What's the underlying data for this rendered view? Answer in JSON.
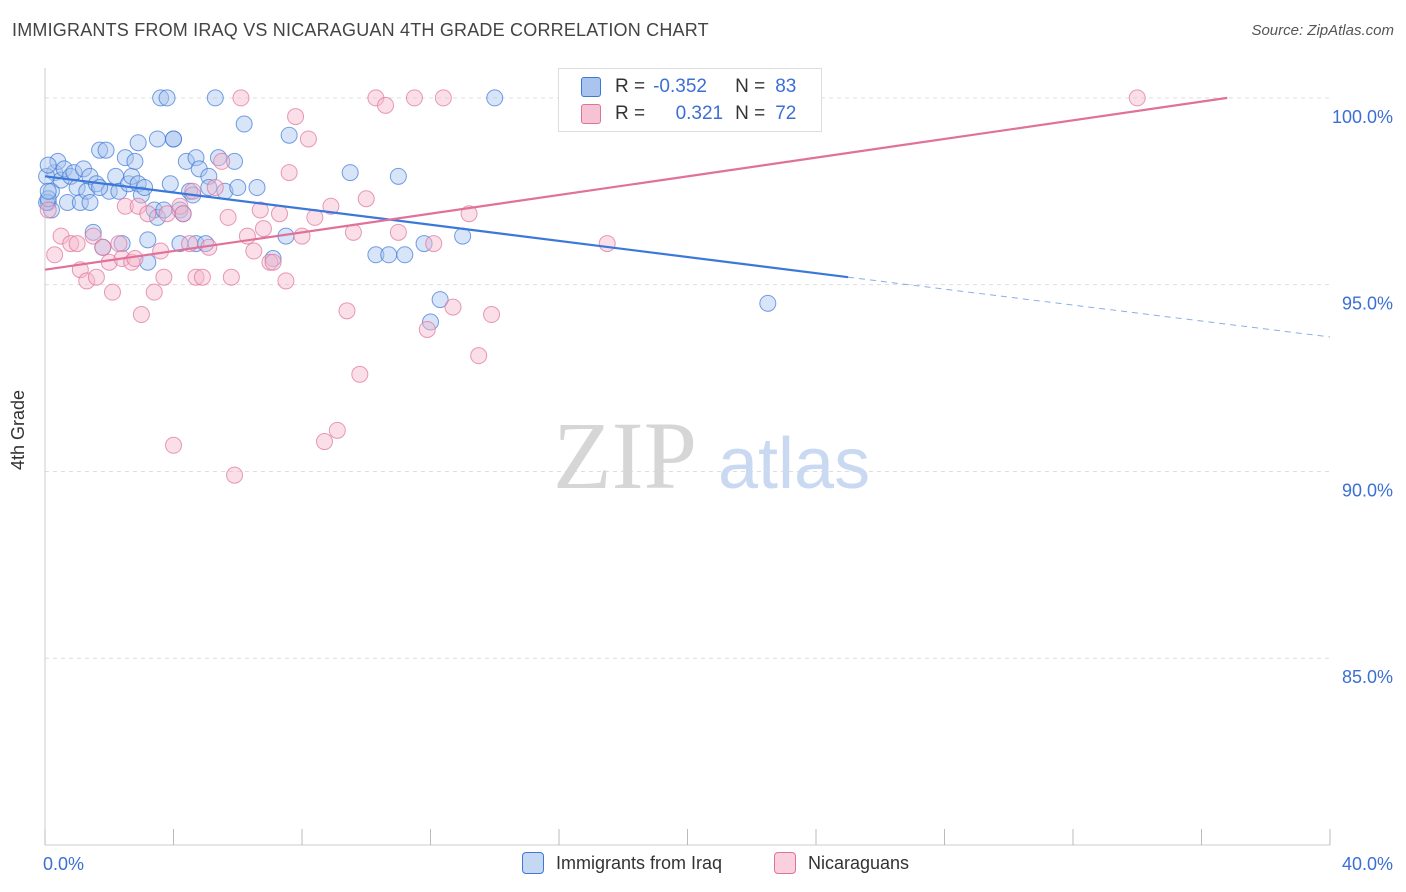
{
  "title": "IMMIGRANTS FROM IRAQ VS NICARAGUAN 4TH GRADE CORRELATION CHART",
  "source": "Source: ZipAtlas.com",
  "watermark": {
    "zip": "ZIP",
    "atlas": "atlas"
  },
  "stats": {
    "row1": {
      "r_label": "R =",
      "r_value": "-0.352",
      "n_label": "N =",
      "n_value": "83"
    },
    "row2": {
      "r_label": "R =",
      "r_value": "0.321",
      "n_label": "N =",
      "n_value": "72"
    }
  },
  "legend": {
    "series1": "Immigrants from Iraq",
    "series2": "Nicaraguans"
  },
  "colors": {
    "blue": "#3b78d8",
    "blue_fill": "#a9c4ee",
    "pink": "#e0719a",
    "pink_fill": "#f5b8cc",
    "grid": "#dddddd",
    "axis_text": "#3b6fd4"
  },
  "chart_data": {
    "type": "scatter",
    "xlabel": "",
    "ylabel": "4th Grade",
    "xlim": [
      0,
      40
    ],
    "ylim": [
      80,
      100.8
    ],
    "x_tick_labels": [
      "0.0%",
      "40.0%"
    ],
    "y_ticks": [
      85,
      90,
      95,
      100
    ],
    "y_tick_labels": [
      "85.0%",
      "90.0%",
      "95.0%",
      "100.0%"
    ],
    "series": [
      {
        "name": "Immigrants from Iraq",
        "color": "#3b78d8",
        "points": [
          [
            0.1,
            97.2
          ],
          [
            0.2,
            97.5
          ],
          [
            0.2,
            97.0
          ],
          [
            0.3,
            98.0
          ],
          [
            0.4,
            98.3
          ],
          [
            0.5,
            97.8
          ],
          [
            0.6,
            98.1
          ],
          [
            0.7,
            97.2
          ],
          [
            0.8,
            97.9
          ],
          [
            0.9,
            98.0
          ],
          [
            1.0,
            97.6
          ],
          [
            1.1,
            97.2
          ],
          [
            1.2,
            98.1
          ],
          [
            1.3,
            97.5
          ],
          [
            1.4,
            97.9
          ],
          [
            1.4,
            97.2
          ],
          [
            1.5,
            96.4
          ],
          [
            1.6,
            97.7
          ],
          [
            1.7,
            98.6
          ],
          [
            1.8,
            96.0
          ],
          [
            1.9,
            98.6
          ],
          [
            2.0,
            97.5
          ],
          [
            2.2,
            97.9
          ],
          [
            2.3,
            97.5
          ],
          [
            2.4,
            96.1
          ],
          [
            2.5,
            98.4
          ],
          [
            2.6,
            97.7
          ],
          [
            2.7,
            97.9
          ],
          [
            2.8,
            98.3
          ],
          [
            2.9,
            98.8
          ],
          [
            2.9,
            97.7
          ],
          [
            3.0,
            97.4
          ],
          [
            3.1,
            97.6
          ],
          [
            3.2,
            96.2
          ],
          [
            3.2,
            95.6
          ],
          [
            3.4,
            97.0
          ],
          [
            3.5,
            96.8
          ],
          [
            3.5,
            98.9
          ],
          [
            3.6,
            100.0
          ],
          [
            3.7,
            97.0
          ],
          [
            3.8,
            100.0
          ],
          [
            3.9,
            97.7
          ],
          [
            4.0,
            98.9
          ],
          [
            4.0,
            98.9
          ],
          [
            4.2,
            96.1
          ],
          [
            4.2,
            97.0
          ],
          [
            4.3,
            96.9
          ],
          [
            4.4,
            98.3
          ],
          [
            4.5,
            97.5
          ],
          [
            4.6,
            97.4
          ],
          [
            4.7,
            98.4
          ],
          [
            4.7,
            96.1
          ],
          [
            4.8,
            98.1
          ],
          [
            5.0,
            96.1
          ],
          [
            5.1,
            97.9
          ],
          [
            5.1,
            97.6
          ],
          [
            5.3,
            100.0
          ],
          [
            5.4,
            98.4
          ],
          [
            5.6,
            97.5
          ],
          [
            5.9,
            98.3
          ],
          [
            6.0,
            97.6
          ],
          [
            6.2,
            99.3
          ],
          [
            6.6,
            97.6
          ],
          [
            7.1,
            95.7
          ],
          [
            7.5,
            96.3
          ],
          [
            7.6,
            99.0
          ],
          [
            9.5,
            98.0
          ],
          [
            10.3,
            95.8
          ],
          [
            10.7,
            95.8
          ],
          [
            11.0,
            97.9
          ],
          [
            11.2,
            95.8
          ],
          [
            11.8,
            96.1
          ],
          [
            12.0,
            94.0
          ],
          [
            12.3,
            94.6
          ],
          [
            13.0,
            96.3
          ],
          [
            14.0,
            100.0
          ],
          [
            22.5,
            94.5
          ],
          [
            0.05,
            97.9
          ],
          [
            0.05,
            97.2
          ],
          [
            0.1,
            98.2
          ],
          [
            0.1,
            97.3
          ],
          [
            0.1,
            97.5
          ],
          [
            1.7,
            97.6
          ]
        ]
      },
      {
        "name": "Nicaraguans",
        "color": "#e0719a",
        "points": [
          [
            0.1,
            97.0
          ],
          [
            0.3,
            95.8
          ],
          [
            0.5,
            96.3
          ],
          [
            0.8,
            96.1
          ],
          [
            1.0,
            96.1
          ],
          [
            1.1,
            95.4
          ],
          [
            1.3,
            95.1
          ],
          [
            1.5,
            96.3
          ],
          [
            1.6,
            95.2
          ],
          [
            1.8,
            96.0
          ],
          [
            2.0,
            95.6
          ],
          [
            2.1,
            94.8
          ],
          [
            2.3,
            96.1
          ],
          [
            2.4,
            95.7
          ],
          [
            2.5,
            97.1
          ],
          [
            2.7,
            95.6
          ],
          [
            2.8,
            95.7
          ],
          [
            2.9,
            97.1
          ],
          [
            3.0,
            94.2
          ],
          [
            3.2,
            96.9
          ],
          [
            3.4,
            94.8
          ],
          [
            3.6,
            95.9
          ],
          [
            3.7,
            95.2
          ],
          [
            3.8,
            96.9
          ],
          [
            4.0,
            90.7
          ],
          [
            4.2,
            97.1
          ],
          [
            4.3,
            96.9
          ],
          [
            4.5,
            96.1
          ],
          [
            4.6,
            97.5
          ],
          [
            4.7,
            95.2
          ],
          [
            4.9,
            95.2
          ],
          [
            5.1,
            96.0
          ],
          [
            5.3,
            97.6
          ],
          [
            5.5,
            98.3
          ],
          [
            5.7,
            96.8
          ],
          [
            5.8,
            95.2
          ],
          [
            5.9,
            89.9
          ],
          [
            6.1,
            100.0
          ],
          [
            6.3,
            96.3
          ],
          [
            6.5,
            95.9
          ],
          [
            6.7,
            97.0
          ],
          [
            6.8,
            96.5
          ],
          [
            7.0,
            95.6
          ],
          [
            7.1,
            95.6
          ],
          [
            7.3,
            96.9
          ],
          [
            7.5,
            95.1
          ],
          [
            7.6,
            98.0
          ],
          [
            7.8,
            99.5
          ],
          [
            8.0,
            96.3
          ],
          [
            8.2,
            98.9
          ],
          [
            8.4,
            96.8
          ],
          [
            8.7,
            90.8
          ],
          [
            8.9,
            97.1
          ],
          [
            9.1,
            91.1
          ],
          [
            9.4,
            94.3
          ],
          [
            9.6,
            96.4
          ],
          [
            9.8,
            92.6
          ],
          [
            10.0,
            97.3
          ],
          [
            10.3,
            100.0
          ],
          [
            10.6,
            99.8
          ],
          [
            11.0,
            96.4
          ],
          [
            11.5,
            100.0
          ],
          [
            11.9,
            93.8
          ],
          [
            12.1,
            96.1
          ],
          [
            12.4,
            100.0
          ],
          [
            12.7,
            94.4
          ],
          [
            13.2,
            96.9
          ],
          [
            13.5,
            93.1
          ],
          [
            13.9,
            94.2
          ],
          [
            17.5,
            96.1
          ],
          [
            19.9,
            100.0
          ],
          [
            34.0,
            100.0
          ]
        ]
      }
    ],
    "trendlines": [
      {
        "series": "Immigrants from Iraq",
        "x": [
          0,
          25
        ],
        "y": [
          97.9,
          95.2
        ],
        "dashed_x": [
          25,
          40
        ],
        "dashed_y": [
          95.2,
          93.6
        ]
      },
      {
        "series": "Nicaraguans",
        "x": [
          0,
          36.8
        ],
        "y": [
          95.4,
          100.0
        ]
      }
    ]
  }
}
